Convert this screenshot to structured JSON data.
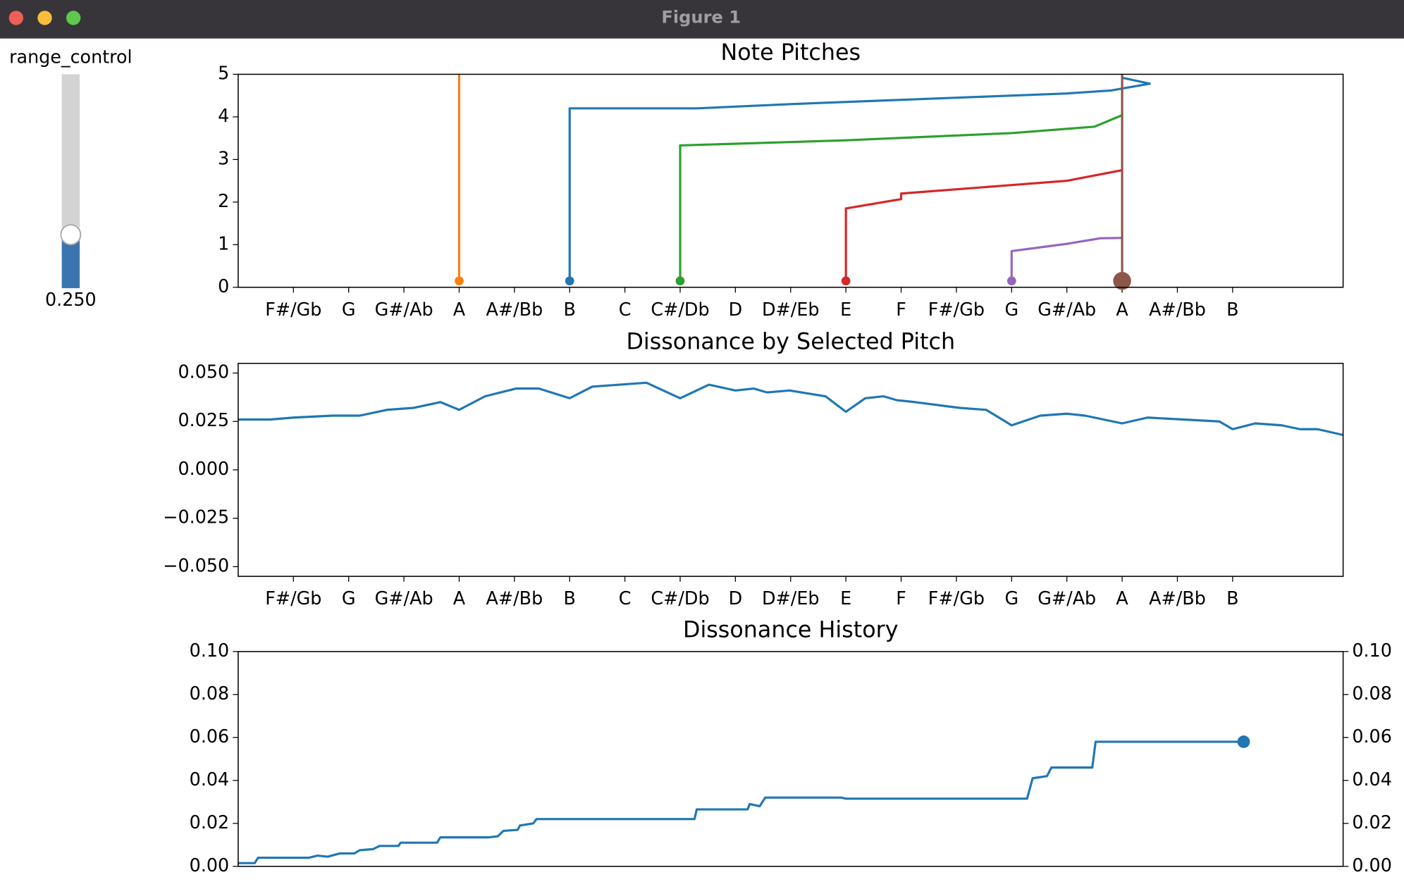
{
  "window": {
    "title": "Figure 1"
  },
  "slider": {
    "label": "range_control",
    "value": 0.25,
    "value_label": "0.250",
    "range": [
      0,
      1
    ]
  },
  "chart_data": [
    {
      "type": "line",
      "title": "Note Pitches",
      "xlim": [
        -1,
        19
      ],
      "ylim": [
        0,
        5
      ],
      "yticks": [
        0,
        1,
        2,
        3,
        4,
        5
      ],
      "xticks": [
        {
          "value": 0,
          "label": "F#/Gb"
        },
        {
          "value": 1,
          "label": "G"
        },
        {
          "value": 2,
          "label": "G#/Ab"
        },
        {
          "value": 3,
          "label": "A"
        },
        {
          "value": 4,
          "label": "A#/Bb"
        },
        {
          "value": 5,
          "label": "B"
        },
        {
          "value": 6,
          "label": "C"
        },
        {
          "value": 7,
          "label": "C#/Db"
        },
        {
          "value": 8,
          "label": "D"
        },
        {
          "value": 9,
          "label": "D#/Eb"
        },
        {
          "value": 10,
          "label": "E"
        },
        {
          "value": 11,
          "label": "F"
        },
        {
          "value": 12,
          "label": "F#/Gb"
        },
        {
          "value": 13,
          "label": "G"
        },
        {
          "value": 14,
          "label": "G#/Ab"
        },
        {
          "value": 15,
          "label": "A"
        },
        {
          "value": 16,
          "label": "A#/Bb"
        },
        {
          "value": 17,
          "label": "B"
        }
      ],
      "series": [
        {
          "color": "#ff7f0e",
          "marker": "first",
          "marker_size": 5,
          "x": [
            3,
            3
          ],
          "values": [
            0.15,
            5
          ]
        },
        {
          "color": "#1f77b4",
          "marker": "first",
          "marker_size": 5,
          "x": [
            5,
            5,
            7.3,
            9,
            12,
            14,
            14.8,
            15.5,
            15
          ],
          "values": [
            0.15,
            4.2,
            4.2,
            4.3,
            4.45,
            4.55,
            4.62,
            4.78,
            4.92
          ]
        },
        {
          "color": "#2ca02c",
          "marker": "first",
          "marker_size": 5,
          "x": [
            7,
            7,
            10,
            13,
            14.5,
            15
          ],
          "values": [
            0.15,
            3.33,
            3.45,
            3.62,
            3.77,
            4.04
          ]
        },
        {
          "color": "#d62728",
          "marker": "first",
          "marker_size": 5,
          "x": [
            10,
            10,
            11,
            11,
            13,
            14,
            15
          ],
          "values": [
            0.15,
            1.85,
            2.07,
            2.2,
            2.4,
            2.5,
            2.75
          ]
        },
        {
          "color": "#9467bd",
          "marker": "first",
          "marker_size": 5,
          "x": [
            13,
            13,
            14,
            14.6,
            15
          ],
          "values": [
            0.15,
            0.85,
            1.02,
            1.15,
            1.16
          ]
        },
        {
          "color": "#8c564b",
          "marker": "first",
          "marker_size": 10,
          "x": [
            15,
            15
          ],
          "values": [
            0.15,
            5
          ]
        }
      ]
    },
    {
      "type": "line",
      "title": "Dissonance by Selected Pitch",
      "xlim": [
        -1,
        19
      ],
      "ylim": [
        -0.055,
        0.055
      ],
      "yticks": [
        {
          "value": 0.05,
          "label": "0.050"
        },
        {
          "value": 0.025,
          "label": "0.025"
        },
        {
          "value": 0,
          "label": "0.000"
        },
        {
          "value": -0.025,
          "label": "−0.025"
        },
        {
          "value": -0.05,
          "label": "−0.050"
        }
      ],
      "xticks": [
        {
          "value": 0,
          "label": "F#/Gb"
        },
        {
          "value": 1,
          "label": "G"
        },
        {
          "value": 2,
          "label": "G#/Ab"
        },
        {
          "value": 3,
          "label": "A"
        },
        {
          "value": 4,
          "label": "A#/Bb"
        },
        {
          "value": 5,
          "label": "B"
        },
        {
          "value": 6,
          "label": "C"
        },
        {
          "value": 7,
          "label": "C#/Db"
        },
        {
          "value": 8,
          "label": "D"
        },
        {
          "value": 9,
          "label": "D#/Eb"
        },
        {
          "value": 10,
          "label": "E"
        },
        {
          "value": 11,
          "label": "F"
        },
        {
          "value": 12,
          "label": "F#/Gb"
        },
        {
          "value": 13,
          "label": "G"
        },
        {
          "value": 14,
          "label": "G#/Ab"
        },
        {
          "value": 15,
          "label": "A"
        },
        {
          "value": 16,
          "label": "A#/Bb"
        },
        {
          "value": 17,
          "label": "B"
        }
      ],
      "series": [
        {
          "color": "#1f77b4",
          "x": [
            -1,
            -0.42,
            0,
            0.71,
            1.2,
            1.69,
            2.17,
            2.66,
            3,
            3.47,
            4.03,
            4.44,
            5,
            5.41,
            5.9,
            6.39,
            7,
            7.52,
            8,
            8.33,
            8.57,
            8.98,
            9.63,
            10,
            10.35,
            10.68,
            10.92,
            11.25,
            12.06,
            12.54,
            13,
            13.52,
            14,
            14.33,
            15,
            15.46,
            16.11,
            16.76,
            17,
            17.41,
            17.89,
            18.22,
            18.54,
            19
          ],
          "values": [
            0.026,
            0.026,
            0.027,
            0.028,
            0.028,
            0.031,
            0.032,
            0.035,
            0.031,
            0.038,
            0.042,
            0.042,
            0.037,
            0.043,
            0.044,
            0.045,
            0.037,
            0.044,
            0.041,
            0.042,
            0.04,
            0.041,
            0.038,
            0.03,
            0.037,
            0.038,
            0.036,
            0.035,
            0.032,
            0.031,
            0.023,
            0.028,
            0.029,
            0.028,
            0.024,
            0.027,
            0.026,
            0.025,
            0.021,
            0.024,
            0.023,
            0.021,
            0.021,
            0.018
          ]
        }
      ]
    },
    {
      "type": "line",
      "title": "Dissonance History",
      "xlim": [
        0,
        100
      ],
      "ylim": [
        0,
        0.1
      ],
      "yticks": [
        {
          "value": 0,
          "label": "0.00"
        },
        {
          "value": 0.02,
          "label": "0.02"
        },
        {
          "value": 0.04,
          "label": "0.04"
        },
        {
          "value": 0.06,
          "label": "0.06"
        },
        {
          "value": 0.08,
          "label": "0.08"
        },
        {
          "value": 0.1,
          "label": "0.10"
        }
      ],
      "y2lim": [
        0,
        0.1
      ],
      "y2ticks": [
        {
          "value": 0,
          "label": "0.00"
        },
        {
          "value": 0.02,
          "label": "0.02"
        },
        {
          "value": 0.04,
          "label": "0.04"
        },
        {
          "value": 0.06,
          "label": "0.06"
        },
        {
          "value": 0.08,
          "label": "0.08"
        },
        {
          "value": 0.1,
          "label": "0.10"
        }
      ],
      "series": [
        {
          "color": "#1f77b4",
          "marker": "last",
          "marker_size": 7,
          "x": [
            0,
            1.5,
            1.8,
            6.4,
            7.2,
            8.1,
            9.2,
            10.5,
            11,
            12.2,
            12.8,
            14.5,
            14.7,
            18,
            18.3,
            22.7,
            23.5,
            24,
            25.3,
            25.5,
            26.7,
            27,
            41.3,
            41.5,
            46.1,
            46.3,
            47.2,
            47.7,
            54.6,
            55,
            71.4,
            71.9,
            73.2,
            73.6,
            77.3,
            77.6,
            91
          ],
          "values": [
            0.0015,
            0.0015,
            0.004,
            0.004,
            0.005,
            0.0045,
            0.006,
            0.006,
            0.0075,
            0.008,
            0.0095,
            0.0095,
            0.011,
            0.011,
            0.0135,
            0.0135,
            0.014,
            0.0165,
            0.017,
            0.019,
            0.02,
            0.022,
            0.022,
            0.0265,
            0.0265,
            0.029,
            0.028,
            0.032,
            0.032,
            0.0315,
            0.0315,
            0.041,
            0.042,
            0.046,
            0.046,
            0.058,
            0.058
          ]
        }
      ]
    }
  ]
}
